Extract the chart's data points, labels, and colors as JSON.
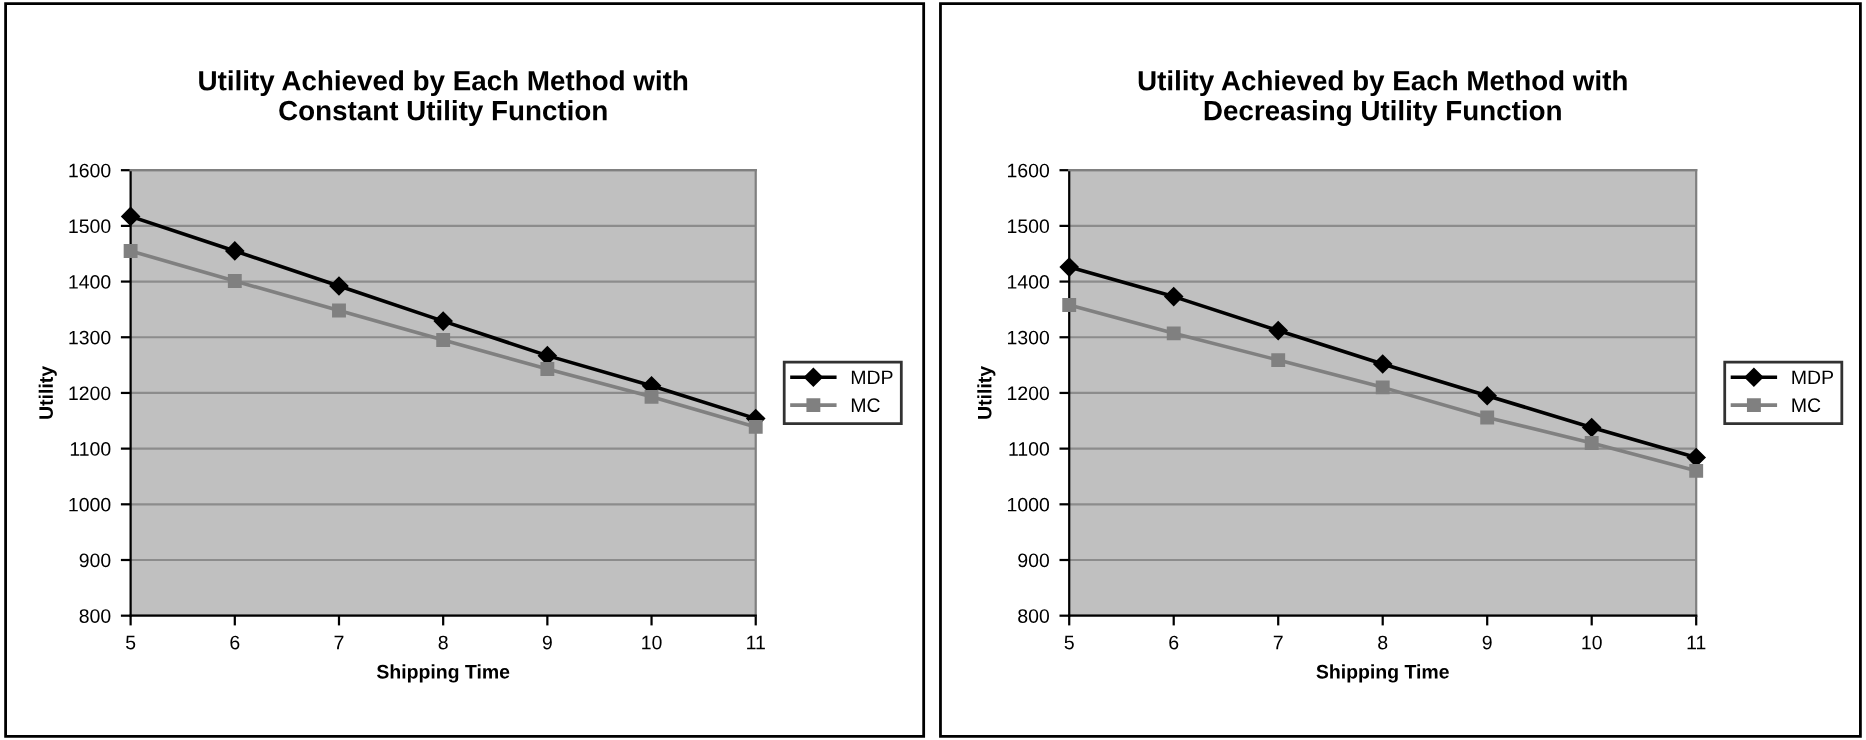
{
  "chart_data": [
    {
      "type": "line",
      "title": "Utility Achieved by Each Method with\nConstant Utility Function",
      "xlabel": "Shipping Time",
      "ylabel": "Utility",
      "x": [
        5,
        6,
        7,
        8,
        9,
        10,
        11
      ],
      "series": [
        {
          "name": "MDP",
          "color": "#000000",
          "marker": "diamond",
          "values": [
            1517,
            1455,
            1392,
            1329,
            1267,
            1213,
            1154
          ]
        },
        {
          "name": "MC",
          "color": "#808080",
          "marker": "square",
          "values": [
            1455,
            1401,
            1348,
            1295,
            1243,
            1193,
            1139
          ]
        }
      ],
      "xlim": [
        5,
        11
      ],
      "xticks": [
        5,
        6,
        7,
        8,
        9,
        10,
        11
      ],
      "ylim": [
        800,
        1600
      ],
      "yticks": [
        800,
        900,
        1000,
        1100,
        1200,
        1300,
        1400,
        1500,
        1600
      ],
      "grid": "y",
      "legend": "right",
      "line_style": "solid"
    },
    {
      "type": "line",
      "title": "Utility Achieved by Each Method with\nDecreasing Utility Function",
      "xlabel": "Shipping Time",
      "ylabel": "Utility",
      "x": [
        5,
        6,
        7,
        8,
        9,
        10,
        11
      ],
      "series": [
        {
          "name": "MDP",
          "color": "#000000",
          "marker": "diamond",
          "values": [
            1426,
            1373,
            1312,
            1252,
            1195,
            1138,
            1084
          ]
        },
        {
          "name": "MC",
          "color": "#808080",
          "marker": "square",
          "values": [
            1358,
            1307,
            1259,
            1210,
            1156,
            1110,
            1060
          ]
        }
      ],
      "xlim": [
        5,
        11
      ],
      "xticks": [
        5,
        6,
        7,
        8,
        9,
        10,
        11
      ],
      "ylim": [
        800,
        1600
      ],
      "yticks": [
        800,
        900,
        1000,
        1100,
        1200,
        1300,
        1400,
        1500,
        1600
      ],
      "grid": "y",
      "legend": "right",
      "line_style": "solid"
    }
  ]
}
